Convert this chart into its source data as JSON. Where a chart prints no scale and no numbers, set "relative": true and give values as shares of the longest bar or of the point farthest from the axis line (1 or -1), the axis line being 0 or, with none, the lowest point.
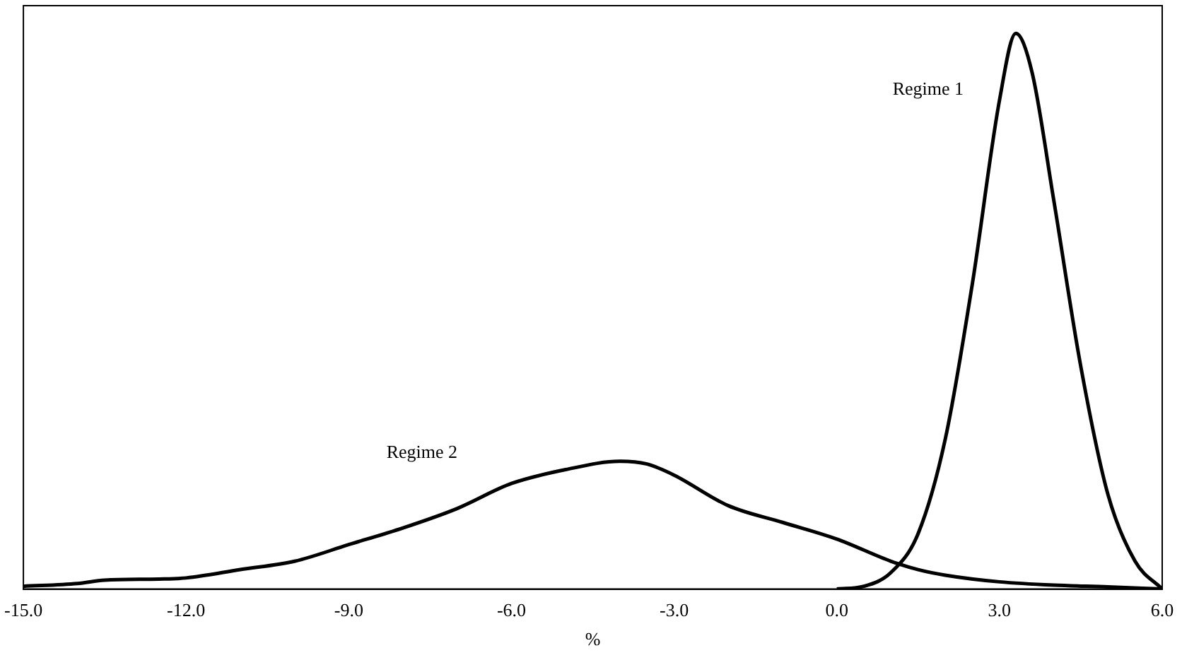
{
  "chart_data": {
    "type": "line",
    "xlabel": "%",
    "relative": true,
    "xlim": [
      -15,
      6
    ],
    "xticks": [
      {
        "value": -15,
        "label": "-15.0"
      },
      {
        "value": -12,
        "label": "-12.0"
      },
      {
        "value": -9,
        "label": "-9.0"
      },
      {
        "value": -6,
        "label": "-6.0"
      },
      {
        "value": -3,
        "label": "-3.0"
      },
      {
        "value": 0,
        "label": "0.0"
      },
      {
        "value": 3,
        "label": "3.0"
      },
      {
        "value": 6,
        "label": "6.0"
      }
    ],
    "grid": false,
    "legend": false,
    "marker": "none",
    "line_style": "solid",
    "series": [
      {
        "name": "Regime 1",
        "color": "#000000",
        "x": [
          0,
          0.5,
          1,
          1.5,
          2,
          2.5,
          3,
          3.3,
          3.6,
          4,
          4.5,
          5,
          5.5,
          6
        ],
        "values": [
          0,
          0.005,
          0.03,
          0.1,
          0.27,
          0.55,
          0.88,
          1,
          0.93,
          0.7,
          0.4,
          0.17,
          0.05,
          0
        ]
      },
      {
        "name": "Regime 2",
        "color": "#000000",
        "x": [
          -15,
          -14,
          -13.5,
          -12.5,
          -12,
          -11,
          -10,
          -9,
          -8,
          -7,
          -6,
          -5,
          -4,
          -3.5,
          -3,
          -2,
          -1,
          0,
          1,
          1.5,
          2,
          3,
          4,
          5,
          6
        ],
        "values": [
          0.005,
          0.01,
          0.016,
          0.018,
          0.02,
          0.035,
          0.05,
          0.08,
          0.11,
          0.145,
          0.19,
          0.215,
          0.23,
          0.225,
          0.205,
          0.15,
          0.12,
          0.09,
          0.05,
          0.035,
          0.025,
          0.013,
          0.007,
          0.004,
          0
        ]
      }
    ]
  }
}
